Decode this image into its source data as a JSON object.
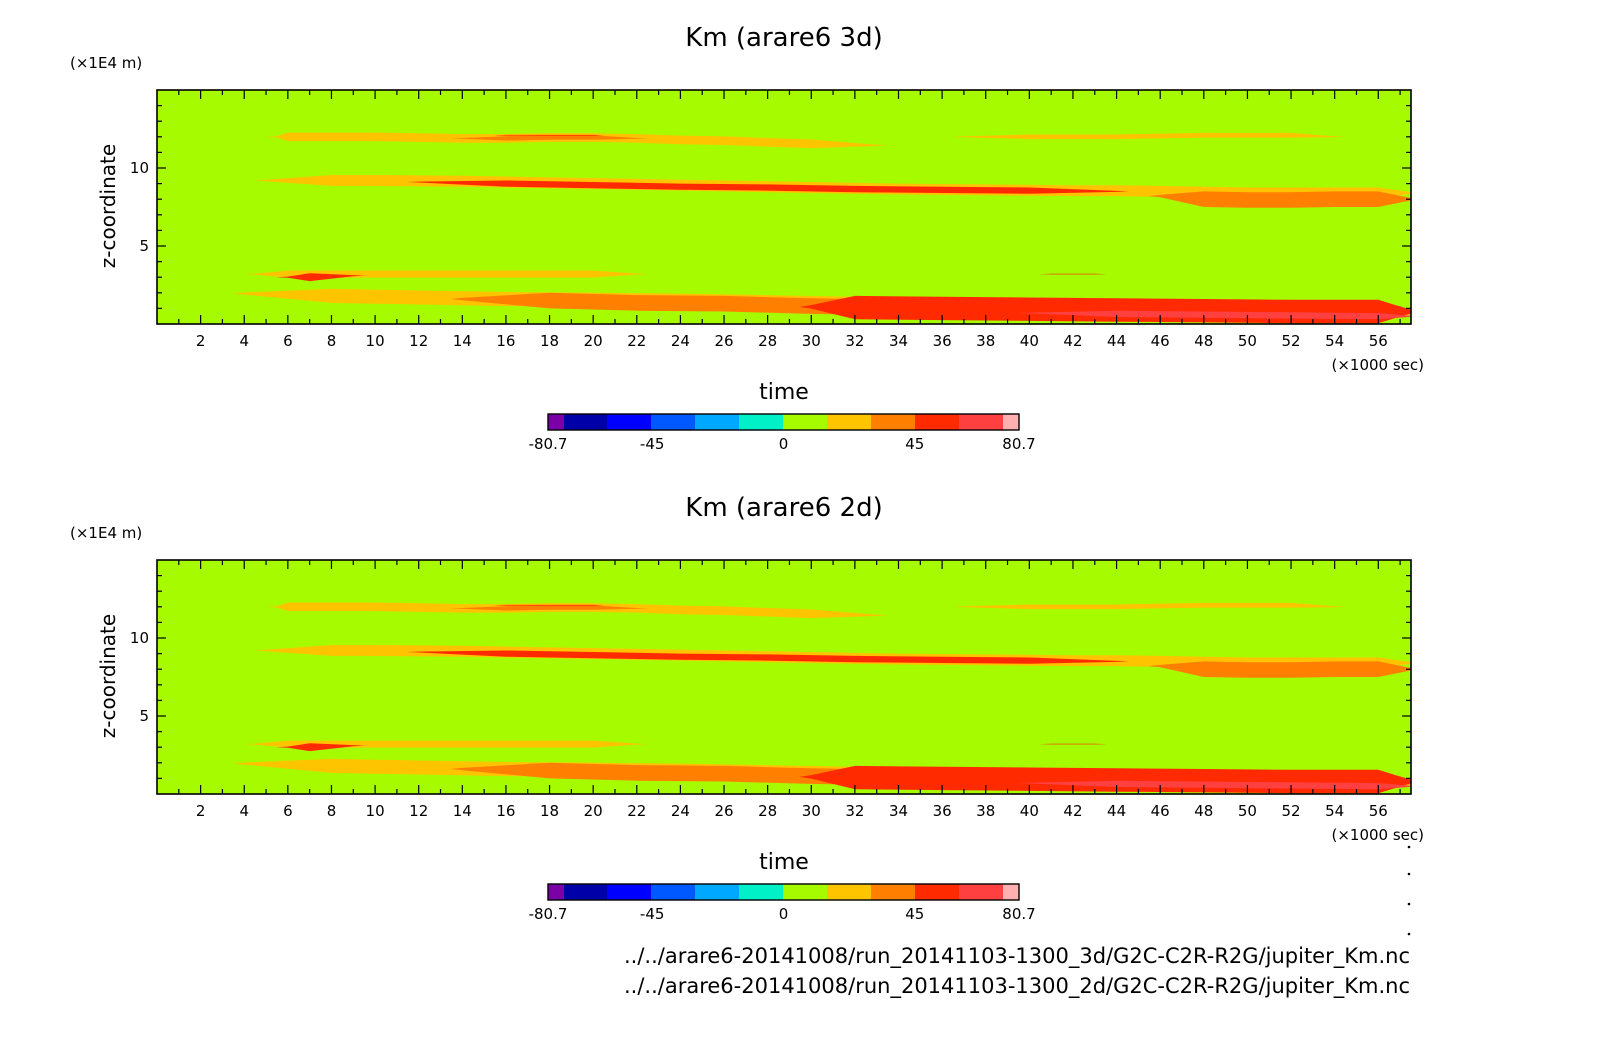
{
  "chart_data": [
    {
      "type": "heatmap",
      "title": "Km (arare6 3d)",
      "xlabel": "time",
      "x_unit": "(×1000 sec)",
      "ylabel": "z-coordinate",
      "y_unit": "(×1E4 m)",
      "xlim": [
        0,
        57.5
      ],
      "ylim": [
        0,
        15
      ],
      "x_ticks": [
        2,
        4,
        6,
        8,
        10,
        12,
        14,
        16,
        18,
        20,
        22,
        24,
        26,
        28,
        30,
        32,
        34,
        36,
        38,
        40,
        42,
        44,
        46,
        48,
        50,
        52,
        54,
        56
      ],
      "y_ticks": [
        5,
        10
      ],
      "background_level": "0 to 10",
      "bands": [
        {
          "x": [
            5.5,
            6,
            8,
            10,
            12,
            14,
            16,
            18,
            20,
            22,
            24,
            26,
            28,
            30,
            33
          ],
          "y": [
            12,
            12,
            12,
            12,
            11.95,
            11.9,
            11.9,
            11.95,
            11.95,
            11.9,
            11.8,
            11.75,
            11.65,
            11.55,
            11.45
          ],
          "thickness": 0.55,
          "level": "10 to 25",
          "core": {
            "x": [
              13,
              22
            ],
            "level": "25 to 35"
          }
        },
        {
          "x": [
            16,
            20
          ],
          "y": [
            12.1,
            12.1
          ],
          "thickness": 0.3,
          "level": "35 to 45"
        },
        {
          "x": [
            37,
            40,
            44,
            48,
            52,
            54
          ],
          "y": [
            12,
            12,
            12,
            12.1,
            12.1,
            12
          ],
          "thickness": 0.3,
          "level": "10 to 25"
        },
        {
          "x": [
            5,
            8,
            10,
            14,
            18,
            22,
            26,
            30,
            34,
            38,
            42,
            44,
            46,
            48,
            50,
            52,
            54,
            56,
            57.5
          ],
          "y": [
            9.2,
            9.2,
            9.2,
            9.15,
            9.05,
            8.95,
            8.85,
            8.75,
            8.65,
            8.6,
            8.55,
            8.55,
            8.5,
            8.45,
            8.4,
            8.4,
            8.4,
            8.4,
            8.4
          ],
          "thickness": 0.7,
          "level": "10 to 25"
        },
        {
          "x": [
            46,
            48,
            50,
            52,
            54,
            56,
            57.5
          ],
          "y": [
            8.2,
            8.0,
            7.95,
            7.95,
            8.0,
            8.0,
            8.0
          ],
          "thickness": 1.0,
          "level": "25 to 35"
        },
        {
          "x": [
            12,
            16,
            20,
            24,
            28,
            32,
            36,
            40,
            44
          ],
          "y": [
            9.1,
            9.0,
            8.9,
            8.8,
            8.75,
            8.65,
            8.6,
            8.55,
            8.5
          ],
          "thickness": 0.4,
          "level": "35 to 45"
        },
        {
          "x": [
            4.5,
            6,
            8,
            10,
            12,
            14,
            16,
            18,
            20,
            22
          ],
          "y": [
            3.2,
            3.2,
            3.2,
            3.2,
            3.2,
            3.2,
            3.2,
            3.2,
            3.2,
            3.2
          ],
          "thickness": 0.45,
          "level": "10 to 25"
        },
        {
          "x": [
            6,
            7,
            9
          ],
          "y": [
            3.0,
            3.0,
            3.1
          ],
          "thickness": 0.5,
          "level": "35 to 45"
        },
        {
          "x": [
            41,
            43
          ],
          "y": [
            3.2,
            3.2
          ],
          "thickness": 0.3,
          "level": "35 to 45"
        },
        {
          "x": [
            4,
            8,
            12,
            16,
            20,
            24,
            28,
            32,
            36,
            40,
            44,
            48,
            52,
            56,
            57.5
          ],
          "y": [
            1.95,
            1.8,
            1.7,
            1.6,
            1.55,
            1.5,
            1.4,
            1.3,
            1.2,
            1.1,
            1.0,
            0.9,
            0.8,
            0.7,
            0.65
          ],
          "thickness": 0.9,
          "level": "10 to 25"
        },
        {
          "x": [
            14,
            18,
            22,
            26,
            30,
            34,
            38,
            42,
            46,
            50,
            54,
            57.5
          ],
          "y": [
            1.6,
            1.5,
            1.35,
            1.3,
            1.15,
            1.05,
            0.95,
            0.9,
            0.85,
            0.8,
            0.75,
            0.7
          ],
          "thickness": 1.0,
          "level": "25 to 35"
        },
        {
          "x": [
            30,
            32,
            36,
            40,
            44,
            48,
            52,
            56,
            57.5
          ],
          "y": [
            1.1,
            1.05,
            1.0,
            0.95,
            0.9,
            0.85,
            0.8,
            0.8,
            0.8
          ],
          "thickness": 1.5,
          "level": "35 to 45"
        },
        {
          "x": [
            40,
            44,
            48,
            52,
            56,
            57.5
          ],
          "y": [
            0.7,
            0.65,
            0.6,
            0.55,
            0.5,
            0.5
          ],
          "thickness": 0.4,
          "level": "45 to 70"
        }
      ]
    },
    {
      "type": "heatmap",
      "title": "Km (arare6 2d)",
      "xlabel": "time",
      "x_unit": "(×1000 sec)",
      "ylabel": "z-coordinate",
      "y_unit": "(×1E4 m)",
      "xlim": [
        0,
        57.5
      ],
      "ylim": [
        0,
        15
      ],
      "x_ticks": [
        2,
        4,
        6,
        8,
        10,
        12,
        14,
        16,
        18,
        20,
        22,
        24,
        26,
        28,
        30,
        32,
        34,
        36,
        38,
        40,
        42,
        44,
        46,
        48,
        50,
        52,
        54,
        56
      ],
      "y_ticks": [
        5,
        10
      ],
      "background_level": "0 to 10",
      "bands": [
        {
          "x": [
            5.5,
            6,
            8,
            10,
            12,
            14,
            16,
            18,
            20,
            22,
            24,
            26,
            28,
            30,
            33
          ],
          "y": [
            12,
            12,
            12,
            12,
            11.95,
            11.9,
            11.9,
            11.95,
            11.95,
            11.9,
            11.8,
            11.75,
            11.65,
            11.55,
            11.45
          ],
          "thickness": 0.55,
          "level": "10 to 25",
          "core": {
            "x": [
              13,
              22
            ],
            "level": "25 to 35"
          }
        },
        {
          "x": [
            16,
            20
          ],
          "y": [
            12.1,
            12.1
          ],
          "thickness": 0.3,
          "level": "35 to 45"
        },
        {
          "x": [
            37,
            40,
            44,
            48,
            52,
            54
          ],
          "y": [
            12,
            12,
            12,
            12.1,
            12.1,
            12
          ],
          "thickness": 0.3,
          "level": "10 to 25"
        },
        {
          "x": [
            5,
            8,
            10,
            14,
            18,
            22,
            26,
            30,
            34,
            38,
            42,
            44,
            46,
            48,
            50,
            52,
            54,
            56,
            57.5
          ],
          "y": [
            9.2,
            9.2,
            9.2,
            9.15,
            9.05,
            8.95,
            8.85,
            8.75,
            8.65,
            8.6,
            8.55,
            8.55,
            8.5,
            8.45,
            8.4,
            8.4,
            8.4,
            8.4,
            8.4
          ],
          "thickness": 0.7,
          "level": "10 to 25"
        },
        {
          "x": [
            46,
            48,
            50,
            52,
            54,
            56,
            57.5
          ],
          "y": [
            8.2,
            8.0,
            7.95,
            7.95,
            8.0,
            8.0,
            8.0
          ],
          "thickness": 1.0,
          "level": "25 to 35"
        },
        {
          "x": [
            12,
            16,
            20,
            24,
            28,
            32,
            36,
            40,
            44
          ],
          "y": [
            9.1,
            9.0,
            8.9,
            8.8,
            8.75,
            8.65,
            8.6,
            8.55,
            8.5
          ],
          "thickness": 0.4,
          "level": "35 to 45"
        },
        {
          "x": [
            4.5,
            6,
            8,
            10,
            12,
            14,
            16,
            18,
            20,
            22
          ],
          "y": [
            3.2,
            3.2,
            3.2,
            3.2,
            3.2,
            3.2,
            3.2,
            3.2,
            3.2,
            3.2
          ],
          "thickness": 0.45,
          "level": "10 to 25"
        },
        {
          "x": [
            6,
            7,
            9
          ],
          "y": [
            3.0,
            3.0,
            3.1
          ],
          "thickness": 0.5,
          "level": "35 to 45"
        },
        {
          "x": [
            41,
            43
          ],
          "y": [
            3.2,
            3.2
          ],
          "thickness": 0.3,
          "level": "35 to 45"
        },
        {
          "x": [
            4,
            8,
            12,
            16,
            20,
            24,
            28,
            32,
            36,
            40,
            44,
            48,
            52,
            56,
            57.5
          ],
          "y": [
            1.95,
            1.8,
            1.7,
            1.6,
            1.55,
            1.5,
            1.4,
            1.3,
            1.2,
            1.1,
            1.0,
            0.9,
            0.8,
            0.7,
            0.65
          ],
          "thickness": 0.9,
          "level": "10 to 25"
        },
        {
          "x": [
            14,
            18,
            22,
            26,
            30,
            34,
            38,
            42,
            46,
            50,
            54,
            57.5
          ],
          "y": [
            1.6,
            1.5,
            1.35,
            1.3,
            1.15,
            1.05,
            0.95,
            0.9,
            0.85,
            0.8,
            0.75,
            0.7
          ],
          "thickness": 1.0,
          "level": "25 to 35"
        },
        {
          "x": [
            30,
            32,
            36,
            40,
            44,
            48,
            52,
            56,
            57.5
          ],
          "y": [
            1.1,
            1.05,
            1.0,
            0.95,
            0.9,
            0.85,
            0.8,
            0.8,
            0.8
          ],
          "thickness": 1.5,
          "level": "35 to 45"
        },
        {
          "x": [
            40,
            44,
            48,
            52,
            56,
            57.5
          ],
          "y": [
            0.7,
            0.65,
            0.6,
            0.55,
            0.5,
            0.5
          ],
          "thickness": 0.4,
          "level": "45 to 70"
        }
      ]
    }
  ],
  "colorbar": {
    "tick_labels": [
      "-80.7",
      "-45",
      "0",
      "45",
      "80.7"
    ],
    "range": [
      -80.7,
      80.7
    ],
    "colors": [
      "#7b00a8",
      "#0000a8",
      "#0000ff",
      "#0058ff",
      "#00a8ff",
      "#00f0c8",
      "#a6fb00",
      "#ffc400",
      "#ff7f00",
      "#ff2a00",
      "#ff4040",
      "#ffb0b0"
    ]
  },
  "level_colors": {
    "0 to 10": "#a6fb00",
    "10 to 25": "#ffc400",
    "25 to 35": "#ff7f00",
    "35 to 45": "#ff2a00",
    "45 to 70": "#ff4040"
  },
  "file_paths": [
    "../../arare6-20141008/run_20141103-1300_3d/G2C-C2R-R2G/jupiter_Km.nc",
    "../../arare6-20141008/run_20141103-1300_2d/G2C-C2R-R2G/jupiter_Km.nc"
  ]
}
